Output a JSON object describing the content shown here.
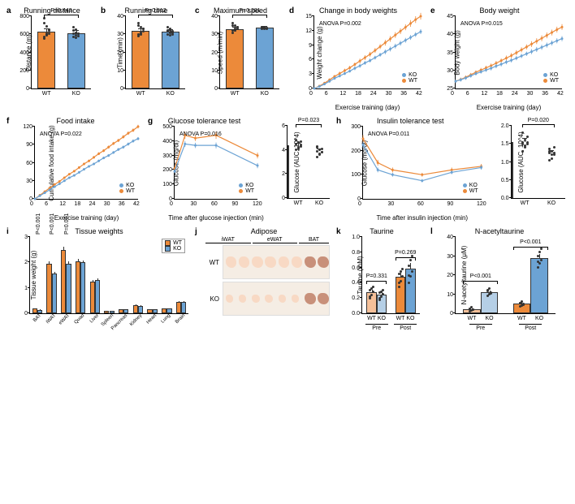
{
  "colors": {
    "wt": "#ec8a3a",
    "ko": "#6ca3d4",
    "wt_dark": "#d97820",
    "ko_dark": "#4a84b8",
    "wt_light": "#f5c099",
    "ko_light": "#b5cfe6",
    "axis": "#000000",
    "grid": "#e0e0e0",
    "bg": "#ffffff",
    "scatter": "#333333"
  },
  "typography": {
    "title_fontsize": 9,
    "label_fontsize": 8,
    "tick_fontsize": 7,
    "pval_fontsize": 7,
    "panel_label_fontsize": 10,
    "font_family": "Arial"
  },
  "panels": {
    "a": {
      "label": "a",
      "title": "Running distance",
      "ylabel": "Distance (m)",
      "type": "bar",
      "groups": [
        "WT",
        "KO"
      ],
      "means": [
        625,
        610
      ],
      "errors": [
        30,
        25
      ],
      "scatter": {
        "WT": [
          570,
          600,
          610,
          550,
          690,
          640,
          720,
          605,
          650,
          780,
          590
        ],
        "KO": [
          570,
          560,
          610,
          640,
          650,
          580,
          680,
          590,
          610,
          605,
          620
        ]
      },
      "colors": [
        "#ec8a3a",
        "#6ca3d4"
      ],
      "ylim": [
        0,
        800
      ],
      "ytick_step": 200,
      "pvalue": "P=0.443",
      "bar_width": 0.6
    },
    "b": {
      "label": "b",
      "title": "Running time",
      "ylabel": "Time (min)",
      "type": "bar",
      "groups": [
        "WT",
        "KO"
      ],
      "means": [
        32,
        31.5
      ],
      "errors": [
        1.0,
        0.8
      ],
      "scatter": {
        "WT": [
          30,
          31,
          31.5,
          29,
          34,
          33,
          35,
          31,
          33,
          36,
          30
        ],
        "KO": [
          30,
          29.5,
          31,
          32,
          33,
          30,
          34,
          31,
          31.5,
          31.5,
          32
        ]
      },
      "colors": [
        "#ec8a3a",
        "#6ca3d4"
      ],
      "ylim": [
        0,
        40
      ],
      "ytick_step": 10,
      "pvalue": "P=0.512",
      "bar_width": 0.6
    },
    "c": {
      "label": "c",
      "title": "Maximum speed",
      "ylabel": "Speed (m/min)",
      "type": "bar",
      "groups": [
        "WT",
        "KO"
      ],
      "means": [
        33,
        33.5
      ],
      "errors": [
        0.8,
        0.5
      ],
      "scatter": {
        "WT": [
          31,
          32,
          33,
          32,
          35,
          34,
          36,
          33,
          34,
          35,
          32
        ],
        "KO": [
          33,
          33,
          33.5,
          34,
          34,
          33,
          34,
          33.5,
          33.5,
          34,
          34
        ]
      },
      "colors": [
        "#ec8a3a",
        "#6ca3d4"
      ],
      "ylim": [
        0,
        40
      ],
      "ytick_step": 10,
      "pvalue": "P=0.281",
      "bar_width": 0.6
    },
    "d": {
      "label": "d",
      "title": "Change in body weights",
      "ylabel": "Weight change (g)",
      "xlabel": "Exercise training (day)",
      "type": "line",
      "x": [
        0,
        2,
        4,
        6,
        8,
        10,
        12,
        14,
        16,
        18,
        20,
        22,
        24,
        26,
        28,
        30,
        32,
        34,
        36,
        38,
        40,
        42
      ],
      "series": {
        "WT": [
          0,
          0.5,
          1.1,
          1.8,
          2.5,
          3.1,
          3.7,
          4.3,
          5.0,
          5.7,
          6.4,
          7.1,
          7.9,
          8.7,
          9.5,
          10.3,
          11.1,
          11.9,
          12.7,
          13.5,
          14.3,
          15.0
        ],
        "KO": [
          0,
          0.4,
          0.9,
          1.5,
          2.1,
          2.6,
          3.1,
          3.6,
          4.2,
          4.7,
          5.3,
          5.8,
          6.4,
          7.0,
          7.6,
          8.2,
          8.8,
          9.4,
          10.0,
          10.6,
          11.2,
          11.8
        ]
      },
      "errors": {
        "WT": [
          0.2,
          0.2,
          0.3,
          0.3,
          0.3,
          0.4,
          0.4,
          0.4,
          0.4,
          0.5,
          0.5,
          0.5,
          0.5,
          0.5,
          0.6,
          0.6,
          0.6,
          0.6,
          0.6,
          0.7,
          0.7,
          0.7
        ],
        "KO": [
          0.2,
          0.2,
          0.2,
          0.3,
          0.3,
          0.3,
          0.3,
          0.3,
          0.4,
          0.4,
          0.4,
          0.4,
          0.4,
          0.4,
          0.5,
          0.5,
          0.5,
          0.5,
          0.5,
          0.5,
          0.5,
          0.5
        ]
      },
      "colors": {
        "WT": "#ec8a3a",
        "KO": "#6ca3d4"
      },
      "ylim": [
        0,
        15
      ],
      "ytick_step": 3,
      "xlim": [
        0,
        42
      ],
      "xtick_step": 6,
      "anova": "ANOVA P=0.002",
      "legend": [
        "KO",
        "WT"
      ],
      "marker": "circle",
      "marker_size": 3
    },
    "e": {
      "label": "e",
      "title": "Body weight",
      "ylabel": "Body weight (g)",
      "xlabel": "Exercise training (day)",
      "type": "line",
      "x": [
        0,
        2,
        4,
        6,
        8,
        10,
        12,
        14,
        16,
        18,
        20,
        22,
        24,
        26,
        28,
        30,
        32,
        34,
        36,
        38,
        40,
        42
      ],
      "series": {
        "WT": [
          27,
          27.5,
          28.1,
          28.8,
          29.5,
          30.1,
          30.7,
          31.3,
          32.0,
          32.7,
          33.4,
          34.1,
          34.9,
          35.7,
          36.5,
          37.3,
          38.1,
          38.9,
          39.7,
          40.5,
          41.3,
          42.0
        ],
        "KO": [
          27,
          27.4,
          27.9,
          28.5,
          29.1,
          29.6,
          30.1,
          30.6,
          31.2,
          31.7,
          32.3,
          32.8,
          33.4,
          34.0,
          34.6,
          35.2,
          35.8,
          36.4,
          37.0,
          37.6,
          38.2,
          38.8
        ]
      },
      "errors": {
        "WT": [
          0.5,
          0.5,
          0.5,
          0.5,
          0.5,
          0.6,
          0.6,
          0.6,
          0.6,
          0.6,
          0.7,
          0.7,
          0.7,
          0.7,
          0.7,
          0.8,
          0.8,
          0.8,
          0.8,
          0.8,
          0.8,
          0.8
        ],
        "KO": [
          0.5,
          0.5,
          0.5,
          0.5,
          0.5,
          0.5,
          0.5,
          0.6,
          0.6,
          0.6,
          0.6,
          0.6,
          0.6,
          0.6,
          0.6,
          0.7,
          0.7,
          0.7,
          0.7,
          0.7,
          0.7,
          0.7
        ]
      },
      "colors": {
        "WT": "#ec8a3a",
        "KO": "#6ca3d4"
      },
      "ylim": [
        25,
        45
      ],
      "ytick_step": 5,
      "xlim": [
        0,
        42
      ],
      "xtick_step": 6,
      "anova": "ANOVA P=0.015",
      "legend": [
        "KO",
        "WT"
      ],
      "marker": "circle",
      "marker_size": 3
    },
    "f": {
      "label": "f",
      "title": "Food intake",
      "ylabel": "Cumulative food intake (g)",
      "xlabel": "Exercise training (day)",
      "type": "line",
      "x": [
        0,
        2,
        4,
        6,
        8,
        10,
        12,
        14,
        16,
        18,
        20,
        22,
        24,
        26,
        28,
        30,
        32,
        34,
        36,
        38,
        40,
        42
      ],
      "series": {
        "WT": [
          0,
          6,
          12,
          18,
          24,
          29,
          35,
          41,
          46,
          52,
          58,
          63,
          69,
          75,
          80,
          86,
          92,
          97,
          103,
          109,
          114,
          120
        ],
        "KO": [
          0,
          5,
          10,
          15,
          20,
          25,
          30,
          35,
          39,
          44,
          49,
          54,
          58,
          63,
          68,
          72,
          77,
          82,
          86,
          91,
          96,
          100
        ]
      },
      "errors": {
        "WT": [
          0,
          0.5,
          0.8,
          1.0,
          1.2,
          1.3,
          1.5,
          1.6,
          1.8,
          1.9,
          2.0,
          2.1,
          2.2,
          2.3,
          2.4,
          2.5,
          2.6,
          2.7,
          2.8,
          2.9,
          3.0,
          3.0
        ],
        "KO": [
          0,
          0.4,
          0.7,
          0.9,
          1.0,
          1.1,
          1.3,
          1.4,
          1.5,
          1.6,
          1.7,
          1.8,
          1.9,
          2.0,
          2.1,
          2.2,
          2.3,
          2.4,
          2.5,
          2.6,
          2.6,
          2.7
        ]
      },
      "colors": {
        "WT": "#ec8a3a",
        "KO": "#6ca3d4"
      },
      "ylim": [
        0,
        120
      ],
      "ytick_step": 30,
      "xlim": [
        0,
        42
      ],
      "xtick_step": 6,
      "anova": "ANOVA P=0.022",
      "legend": [
        "KO",
        "WT"
      ],
      "marker": "circle",
      "marker_size": 3
    },
    "g": {
      "label": "g",
      "title": "Glucose tolerance test",
      "ylabel": "Glucose (mg/dl)",
      "xlabel": "Time after glucose injection (min)",
      "type": "line",
      "x": [
        0,
        15,
        30,
        60,
        120
      ],
      "series": {
        "WT": [
          210,
          440,
          420,
          440,
          300
        ],
        "KO": [
          190,
          380,
          370,
          370,
          230
        ]
      },
      "errors": {
        "WT": [
          15,
          25,
          20,
          25,
          20
        ],
        "KO": [
          12,
          20,
          18,
          20,
          18
        ]
      },
      "colors": {
        "WT": "#ec8a3a",
        "KO": "#6ca3d4"
      },
      "ylim": [
        0,
        500
      ],
      "ytick_step": 100,
      "xlim": [
        0,
        120
      ],
      "xtick_step": 30,
      "anova": "ANOVA P=0.016",
      "legend": [
        "KO",
        "WT"
      ],
      "marker": "circle",
      "marker_size": 3,
      "auc_bar": {
        "ylabel": "Glucose (AUC, 10^4)",
        "groups": [
          "WT",
          "KO"
        ],
        "means": [
          4.4,
          3.9
        ],
        "errors": [
          0.15,
          0.15
        ],
        "scatter": {
          "WT": [
            4.0,
            4.1,
            4.3,
            4.5,
            4.6,
            4.7,
            4.8,
            4.2,
            4.4,
            4.5
          ],
          "KO": [
            3.4,
            3.6,
            3.8,
            3.9,
            4.0,
            4.1,
            4.3,
            3.7,
            3.8,
            4.2
          ]
        },
        "colors": [
          "#ec8a3a",
          "#6ca3d4"
        ],
        "ylim": [
          0,
          6
        ],
        "ytick_step": 2,
        "pvalue": "P=0.023"
      }
    },
    "h": {
      "label": "h",
      "title": "Insulin tolerance test",
      "ylabel": "Glucose (mg/dl)",
      "xlabel": "Time after insulin injection (min)",
      "type": "line",
      "x": [
        0,
        15,
        30,
        60,
        90,
        120
      ],
      "series": {
        "WT": [
          250,
          150,
          120,
          100,
          120,
          135
        ],
        "KO": [
          225,
          120,
          100,
          75,
          110,
          130
        ]
      },
      "errors": {
        "WT": [
          15,
          12,
          10,
          8,
          10,
          10
        ],
        "KO": [
          12,
          10,
          8,
          7,
          8,
          9
        ]
      },
      "colors": {
        "WT": "#ec8a3a",
        "KO": "#6ca3d4"
      },
      "ylim": [
        0,
        300
      ],
      "ytick_step": 100,
      "xlim": [
        0,
        120
      ],
      "xtick_step": 30,
      "anova": "ANOVA P=0.011",
      "legend": [
        "KO",
        "WT"
      ],
      "marker": "circle",
      "marker_size": 3,
      "auc_bar": {
        "ylabel": "Glucose (AUC, 10^4)",
        "groups": [
          "WT",
          "KO"
        ],
        "means": [
          1.55,
          1.25
        ],
        "errors": [
          0.08,
          0.06
        ],
        "scatter": {
          "WT": [
            1.3,
            1.4,
            1.5,
            1.55,
            1.6,
            1.7,
            1.8,
            1.45,
            1.55,
            1.5
          ],
          "KO": [
            1.05,
            1.1,
            1.2,
            1.25,
            1.3,
            1.4,
            1.35,
            1.2,
            1.25,
            1.3
          ]
        },
        "colors": [
          "#ec8a3a",
          "#6ca3d4"
        ],
        "ylim": [
          0,
          2.0
        ],
        "ytick_step": 0.5,
        "pvalue": "P=0.020"
      }
    },
    "i": {
      "label": "i",
      "title": "Tissue weights",
      "ylabel": "Tissue weight (g)",
      "type": "grouped-bar",
      "tissues": [
        "BAT",
        "iWAT",
        "eWAT",
        "Quad",
        "Liver",
        "Spleen",
        "Pancreas",
        "Kidney",
        "Heart",
        "Lung",
        "Brain"
      ],
      "series": {
        "WT": [
          0.18,
          1.95,
          2.5,
          2.05,
          1.25,
          0.1,
          0.15,
          0.32,
          0.15,
          0.18,
          0.45
        ],
        "KO": [
          0.14,
          1.55,
          1.95,
          2.0,
          1.3,
          0.1,
          0.15,
          0.3,
          0.15,
          0.18,
          0.45
        ]
      },
      "errors": {
        "WT": [
          0.02,
          0.1,
          0.12,
          0.08,
          0.06,
          0.01,
          0.02,
          0.02,
          0.01,
          0.01,
          0.02
        ],
        "KO": [
          0.02,
          0.08,
          0.1,
          0.08,
          0.06,
          0.01,
          0.02,
          0.02,
          0.01,
          0.01,
          0.02
        ]
      },
      "colors": {
        "WT": "#ec8a3a",
        "KO": "#6ca3d4"
      },
      "ylim": [
        0,
        3
      ],
      "ytick_step": 1,
      "pvalues": {
        "iWAT": "P<0.001",
        "eWAT": "P<0.001",
        "Quad": "P=0.001"
      },
      "legend": [
        "WT",
        "KO"
      ],
      "bar_width": 0.35
    },
    "j": {
      "label": "j",
      "title": "Adipose",
      "type": "photo",
      "columns": [
        "iWAT",
        "eWAT",
        "BAT"
      ],
      "rows": [
        "WT",
        "KO"
      ],
      "blob_color": "#f8d9c4",
      "bg_color": "#f5ede4",
      "n_per_col": {
        "iWAT": 3,
        "eWAT": 3,
        "BAT": 2
      }
    },
    "k": {
      "label": "k",
      "title": "Taurine",
      "ylabel": "Taurine (mM)",
      "type": "grouped-bar",
      "groups": [
        "Pre",
        "Post"
      ],
      "subgroups": [
        "WT",
        "KO"
      ],
      "means": {
        "Pre": [
          0.28,
          0.25
        ],
        "Post": [
          0.48,
          0.58
        ]
      },
      "errors": {
        "Pre": [
          0.03,
          0.03
        ],
        "Post": [
          0.06,
          0.08
        ]
      },
      "scatter": {
        "Pre_WT": [
          0.2,
          0.24,
          0.28,
          0.3,
          0.32,
          0.35,
          0.22
        ],
        "Pre_KO": [
          0.18,
          0.22,
          0.25,
          0.27,
          0.28,
          0.3,
          0.2
        ],
        "Post_WT": [
          0.35,
          0.42,
          0.48,
          0.52,
          0.55,
          0.58,
          0.4
        ],
        "Post_KO": [
          0.4,
          0.48,
          0.55,
          0.62,
          0.7,
          0.75,
          0.5
        ]
      },
      "colors": {
        "Pre_WT": "#f5c099",
        "Pre_KO": "#b5cfe6",
        "Post_WT": "#ec8a3a",
        "Post_KO": "#6ca3d4"
      },
      "ylim": [
        0,
        1.0
      ],
      "ytick_step": 0.2,
      "pvalues": {
        "Pre": "P=0.331",
        "Post": "P=0.269"
      },
      "bar_width": 0.35
    },
    "l": {
      "label": "l",
      "title": "N-acetyltaurine",
      "ylabel": "N-acetyltaurine (μM)",
      "type": "grouped-bar",
      "groups": [
        "Pre",
        "Post"
      ],
      "subgroups": [
        "WT",
        "KO"
      ],
      "means": {
        "Pre": [
          2,
          11
        ],
        "Post": [
          5,
          29
        ]
      },
      "errors": {
        "Pre": [
          0.5,
          1.0
        ],
        "Post": [
          0.8,
          2.0
        ]
      },
      "scatter": {
        "Pre_WT": [
          1,
          1.5,
          2,
          2.5,
          3,
          1.8,
          2.2
        ],
        "Pre_KO": [
          9,
          10,
          11,
          12,
          13,
          10.5,
          11.5
        ],
        "Post_WT": [
          3.5,
          4,
          5,
          5.5,
          6,
          4.5,
          5.2
        ],
        "Post_KO": [
          24,
          26,
          28,
          30,
          32,
          34,
          27
        ]
      },
      "colors": {
        "Pre_WT": "#f5c099",
        "Pre_KO": "#b5cfe6",
        "Post_WT": "#ec8a3a",
        "Post_KO": "#6ca3d4"
      },
      "ylim": [
        0,
        40
      ],
      "ytick_step": 10,
      "pvalues": {
        "Pre": "P<0.001",
        "Post": "P<0.001"
      },
      "bar_width": 0.35
    }
  }
}
